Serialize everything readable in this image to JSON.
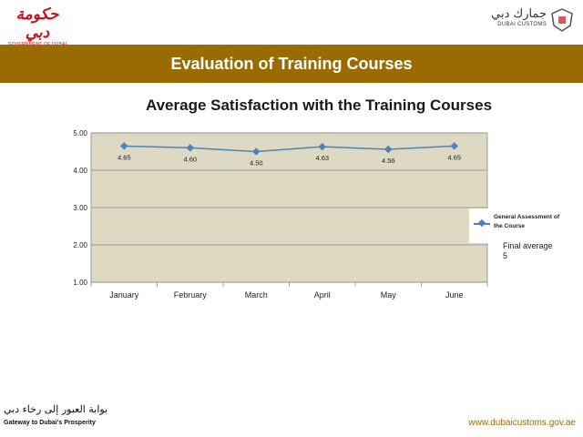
{
  "header": {
    "gov_logo_arabic": "حكومة دبي",
    "gov_logo_english": "GOVERNMENT OF DUBAI",
    "customs_logo_arabic": "جمارك دبي",
    "customs_logo_english": "DUBAI CUSTOMS"
  },
  "slide": {
    "title": "Evaluation of Training Courses"
  },
  "annotation": {
    "line1": "Final average",
    "line2": "5"
  },
  "footer": {
    "tagline_arabic": "بوابة العبور إلى رخاء دبي",
    "tagline_english": "Gateway to Dubai's Prosperity",
    "url": "www.dubaicustoms.gov.ae"
  },
  "colors": {
    "title_bar": "#9a6b00",
    "plot_bg": "#ddd9c3",
    "series": "#4f81bd"
  },
  "chart_data": {
    "type": "line",
    "title": "Average Satisfaction with the Training Courses",
    "categories": [
      "January",
      "February",
      "March",
      "April",
      "May",
      "June"
    ],
    "series": [
      {
        "name": "General Assessment of the Course",
        "values": [
          4.65,
          4.6,
          4.5,
          4.63,
          4.56,
          4.65
        ]
      }
    ],
    "data_labels": [
      "4.65",
      "4.60",
      "4.50",
      "4.63",
      "4.56",
      "4.65"
    ],
    "yticks": [
      "5.00",
      "4.00",
      "3.00",
      "2.00",
      "1.00"
    ],
    "ylim": [
      1,
      5
    ],
    "xlabel": "",
    "ylabel": "",
    "grid": true,
    "legend": "right"
  }
}
